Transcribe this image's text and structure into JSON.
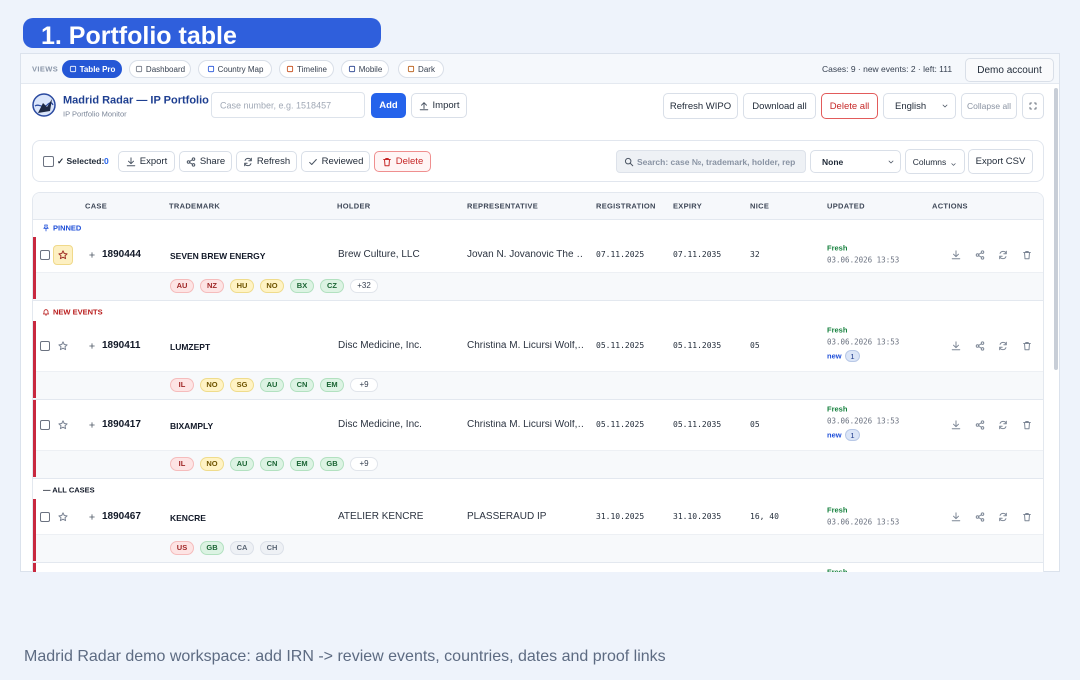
{
  "header": {
    "title": "1. Portfolio table"
  },
  "views": {
    "label": "VIEWS",
    "tabs": [
      "Table Pro",
      "Dashboard",
      "Country Map",
      "Timeline",
      "Mobile",
      "Dark"
    ],
    "active": 0,
    "stats": "Cases: 9 · new events: 2 · left: 111",
    "account": "Demo account"
  },
  "app": {
    "title": "Madrid Radar — IP Portfolio",
    "subtitle": "IP Portfolio Monitor",
    "case_placeholder": "Case number, e.g. 1518457",
    "add": "Add",
    "import": "Import",
    "refresh_wipo": "Refresh WIPO",
    "download_all": "Download all",
    "delete_all": "Delete all",
    "language": "English",
    "collapse_all": "Collapse all"
  },
  "toolbar": {
    "selected_label": "✓ Selected:",
    "selected_count": 0,
    "export": "Export",
    "share": "Share",
    "refresh": "Refresh",
    "reviewed": "Reviewed",
    "delete": "Delete",
    "search_placeholder": "Search: case №, trademark, holder, rep",
    "filter": "None",
    "columns": "Columns",
    "export_csv": "Export CSV"
  },
  "table": {
    "columns": [
      "CASE",
      "TRADEMARK",
      "HOLDER",
      "REPRESENTATIVE",
      "REGISTRATION",
      "EXPIRY",
      "NICE",
      "UPDATED",
      "ACTIONS"
    ],
    "groups": [
      {
        "label": "PINNED",
        "color": "#1d4ed8",
        "rows": [
          {
            "case": "1890444",
            "trademark": "SEVEN BREW ENERGY",
            "holder": "Brew Culture, LLC",
            "representative": "Jovan N. Jovanovic The …",
            "registration": "07.11.2025",
            "expiry": "07.11.2035",
            "nice": "32",
            "status": "Fresh",
            "updated": "03.06.2026 13:53",
            "pinned": true,
            "countries": [
              {
                "code": "AU",
                "tone": "red"
              },
              {
                "code": "NZ",
                "tone": "red"
              },
              {
                "code": "HU",
                "tone": "yellow"
              },
              {
                "code": "NO",
                "tone": "yellow"
              },
              {
                "code": "BX",
                "tone": "green"
              },
              {
                "code": "CZ",
                "tone": "green"
              }
            ],
            "more": "+32"
          }
        ]
      },
      {
        "label": "NEW EVENTS",
        "color": "#b91c1c",
        "rows": [
          {
            "case": "1890411",
            "trademark": "LUMZEPT",
            "holder": "Disc Medicine, Inc.",
            "representative": "Christina M. Licursi Wolf,…",
            "registration": "05.11.2025",
            "expiry": "05.11.2035",
            "nice": "05",
            "status": "Fresh",
            "updated": "03.06.2026 13:53",
            "new": "new",
            "new_count": 1,
            "pinned": false,
            "countries": [
              {
                "code": "IL",
                "tone": "red"
              },
              {
                "code": "NO",
                "tone": "yellow"
              },
              {
                "code": "SG",
                "tone": "yellow"
              },
              {
                "code": "AU",
                "tone": "green"
              },
              {
                "code": "CN",
                "tone": "green"
              },
              {
                "code": "EM",
                "tone": "green"
              }
            ],
            "more": "+9"
          },
          {
            "case": "1890417",
            "trademark": "BIXAMPLY",
            "holder": "Disc Medicine, Inc.",
            "representative": "Christina M. Licursi Wolf,…",
            "registration": "05.11.2025",
            "expiry": "05.11.2035",
            "nice": "05",
            "status": "Fresh",
            "updated": "03.06.2026 13:53",
            "new": "new",
            "new_count": 1,
            "pinned": false,
            "countries": [
              {
                "code": "IL",
                "tone": "red"
              },
              {
                "code": "NO",
                "tone": "yellow"
              },
              {
                "code": "AU",
                "tone": "green"
              },
              {
                "code": "CN",
                "tone": "green"
              },
              {
                "code": "EM",
                "tone": "green"
              },
              {
                "code": "GB",
                "tone": "green"
              }
            ],
            "more": "+9"
          }
        ]
      },
      {
        "label": "— ALL CASES",
        "color": "#111827",
        "rows": [
          {
            "case": "1890467",
            "trademark": "KENCRE",
            "holder": "ATELIER KENCRE",
            "representative": "PLASSERAUD IP",
            "registration": "31.10.2025",
            "expiry": "31.10.2035",
            "nice": "16, 40",
            "status": "Fresh",
            "updated": "03.06.2026 13:53",
            "pinned": false,
            "countries": [
              {
                "code": "US",
                "tone": "red"
              },
              {
                "code": "GB",
                "tone": "green"
              },
              {
                "code": "CA",
                "tone": "gray"
              },
              {
                "code": "CH",
                "tone": "gray"
              }
            ]
          }
        ]
      }
    ],
    "partial_row": {
      "status": "Fresh"
    }
  },
  "caption": "Madrid Radar demo workspace: add IRN -> review events, countries, dates and proof links"
}
